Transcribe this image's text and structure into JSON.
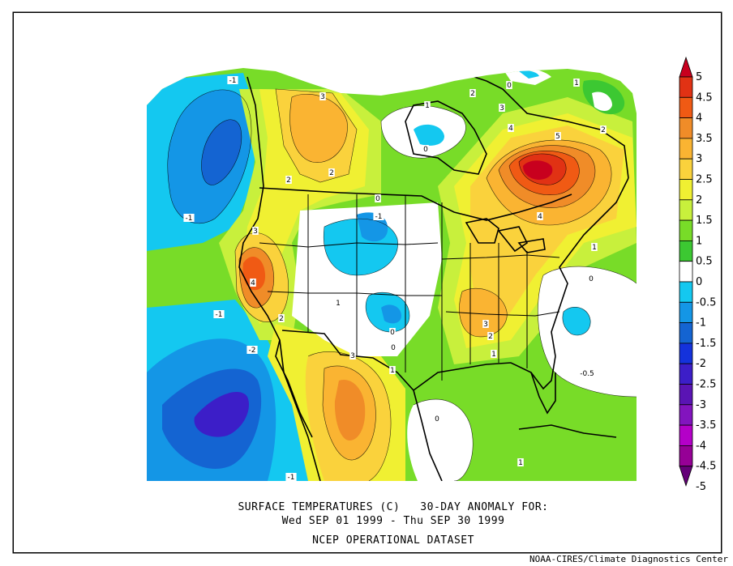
{
  "title_lines": [
    "SURFACE TEMPERATURES (C)   30-DAY ANOMALY FOR:",
    "Wed SEP 01 1999 - Thu SEP 30 1999"
  ],
  "dataset": "NCEP OPERATIONAL DATASET",
  "credit": "NOAA-CIRES/Climate Diagnostics Center",
  "colorbar": {
    "levels": [
      "5",
      "4.5",
      "4",
      "3.5",
      "3",
      "2.5",
      "2",
      "1.5",
      "1",
      "0.5",
      "0",
      "-0.5",
      "-1",
      "-1.5",
      "-2",
      "-2.5",
      "-3",
      "-3.5",
      "-4",
      "-4.5",
      "-5"
    ],
    "colors": [
      "#c8001e",
      "#e13214",
      "#f05a14",
      "#f08c28",
      "#fab432",
      "#fad23c",
      "#f0f032",
      "#c8f03c",
      "#78dc28",
      "#3cc832",
      "#ffffff",
      "#14c8f0",
      "#1496e6",
      "#1464d2",
      "#1432dc",
      "#3c1ec8",
      "#5a14b4",
      "#8214be",
      "#b400c8",
      "#960096",
      "#640078"
    ]
  },
  "contour_labels": [
    {
      "t": "-1"
    },
    {
      "t": "3"
    },
    {
      "t": "2"
    },
    {
      "t": "2"
    },
    {
      "t": "-1"
    },
    {
      "t": "1"
    },
    {
      "t": "0"
    },
    {
      "t": "0"
    },
    {
      "t": "2"
    },
    {
      "t": "3"
    },
    {
      "t": "4"
    },
    {
      "t": "5"
    },
    {
      "t": "2"
    },
    {
      "t": "1"
    },
    {
      "t": "0"
    },
    {
      "t": "0"
    },
    {
      "t": "-1"
    },
    {
      "t": "3"
    },
    {
      "t": "4"
    },
    {
      "t": "2"
    },
    {
      "t": "1"
    },
    {
      "t": "4"
    },
    {
      "t": "1"
    },
    {
      "t": "0"
    },
    {
      "t": "3"
    },
    {
      "t": "2"
    },
    {
      "t": "1"
    },
    {
      "t": "-1"
    },
    {
      "t": "-2"
    },
    {
      "t": "3"
    },
    {
      "t": "0"
    },
    {
      "t": "1"
    },
    {
      "t": "-0.5"
    },
    {
      "t": "0"
    },
    {
      "t": "-1"
    },
    {
      "t": "1"
    }
  ]
}
